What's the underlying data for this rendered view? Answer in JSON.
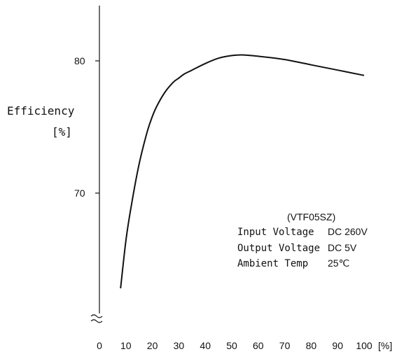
{
  "chart_data": {
    "type": "line",
    "title": "",
    "xlabel": "",
    "ylabel": "Efficiency",
    "ylabel_unit": "[%]",
    "x_unit": "[%]",
    "xlim": [
      0,
      100
    ],
    "ylim": [
      60,
      84
    ],
    "y_axis_break": true,
    "grid": false,
    "legend": "none",
    "x_ticks": [
      "0",
      "10",
      "20",
      "30",
      "40",
      "50",
      "60",
      "70",
      "80",
      "90",
      "100"
    ],
    "y_ticks": [
      "70",
      "80"
    ],
    "series": [
      {
        "x": [
          8,
          10,
          12,
          15,
          18,
          20,
          22,
          25,
          28,
          30,
          32,
          35,
          40,
          45,
          50,
          54,
          60,
          70,
          80,
          90,
          100
        ],
        "y": [
          62.8,
          66.4,
          69.0,
          72.2,
          74.6,
          75.8,
          76.7,
          77.7,
          78.4,
          78.7,
          79.0,
          79.3,
          79.8,
          80.2,
          80.4,
          80.45,
          80.35,
          80.1,
          79.7,
          79.3,
          78.9
        ]
      }
    ],
    "color": "#111111"
  },
  "annotation": {
    "model": "(VTF05SZ)",
    "rows": [
      {
        "label": "Input Voltage",
        "value": "DC 260V"
      },
      {
        "label": "Output Voltage",
        "value": "DC  5V"
      },
      {
        "label": "Ambient Temp",
        "value": "25℃"
      }
    ]
  }
}
